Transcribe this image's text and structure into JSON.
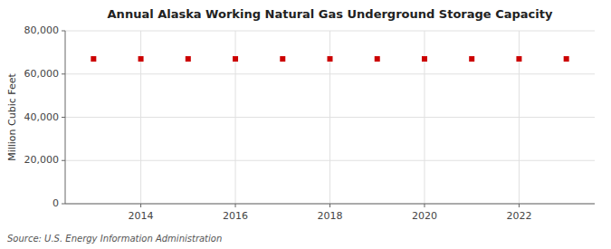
{
  "chart_data": {
    "type": "scatter",
    "title": "Annual Alaska Working Natural Gas Underground Storage Capacity",
    "y_label": "Million Cubic Feet",
    "source": "Source: U.S. Energy Information Administration",
    "x": [
      2013,
      2014,
      2015,
      2016,
      2017,
      2018,
      2019,
      2020,
      2021,
      2022,
      2023
    ],
    "values": [
      67000,
      67000,
      67000,
      67000,
      67000,
      67000,
      67000,
      67000,
      67000,
      67000,
      67000
    ],
    "color": "#cc0000",
    "marker": "square",
    "xlim": [
      2012.4,
      2023.6
    ],
    "xticks": [
      2014,
      2016,
      2018,
      2020,
      2022
    ],
    "ylim": [
      0,
      80000
    ],
    "yticks": [
      0,
      {
        "value": 20000,
        "label": "20,000"
      },
      {
        "value": 40000,
        "label": "40,000"
      },
      {
        "value": 60000,
        "label": "60,000"
      },
      {
        "value": 80000,
        "label": "80,000"
      }
    ],
    "grid": true
  }
}
